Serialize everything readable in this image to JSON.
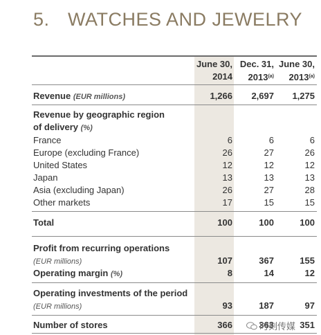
{
  "title": {
    "number": "5.",
    "text": "WATCHES AND JEWELRY"
  },
  "columns": [
    {
      "line1": "June 30,",
      "line2": "2014",
      "note": ""
    },
    {
      "line1": "Dec. 31,",
      "line2": "2013",
      "note": "(a)"
    },
    {
      "line1": "June 30,",
      "line2": "2013",
      "note": "(a)"
    }
  ],
  "revenue": {
    "label": "Revenue",
    "unit": "(EUR millions)",
    "values": [
      "1,266",
      "2,697",
      "1,275"
    ]
  },
  "geo": {
    "heading1": "Revenue by geographic region",
    "heading2": "of delivery",
    "unit": "(%)",
    "rows": [
      {
        "label": "France",
        "values": [
          "6",
          "6",
          "6"
        ]
      },
      {
        "label": "Europe (excluding France)",
        "values": [
          "26",
          "27",
          "26"
        ]
      },
      {
        "label": "United States",
        "values": [
          "12",
          "12",
          "12"
        ]
      },
      {
        "label": "Japan",
        "values": [
          "13",
          "13",
          "13"
        ]
      },
      {
        "label": "Asia (excluding Japan)",
        "values": [
          "26",
          "27",
          "28"
        ]
      },
      {
        "label": "Other markets",
        "values": [
          "17",
          "15",
          "15"
        ]
      }
    ]
  },
  "total": {
    "label": "Total",
    "values": [
      "100",
      "100",
      "100"
    ]
  },
  "profit": {
    "label": "Profit from recurring operations",
    "unit": "(EUR millions)",
    "values": [
      "107",
      "367",
      "155"
    ]
  },
  "margin": {
    "label": "Operating margin",
    "unit": "(%)",
    "values": [
      "8",
      "14",
      "12"
    ]
  },
  "investments": {
    "label": "Operating investments of the period",
    "unit": "(EUR millions)",
    "values": [
      "93",
      "187",
      "97"
    ]
  },
  "stores": {
    "label": "Number of stores",
    "values": [
      "366",
      "363",
      "351"
    ]
  },
  "watermark": {
    "text": "时刻传媒"
  }
}
